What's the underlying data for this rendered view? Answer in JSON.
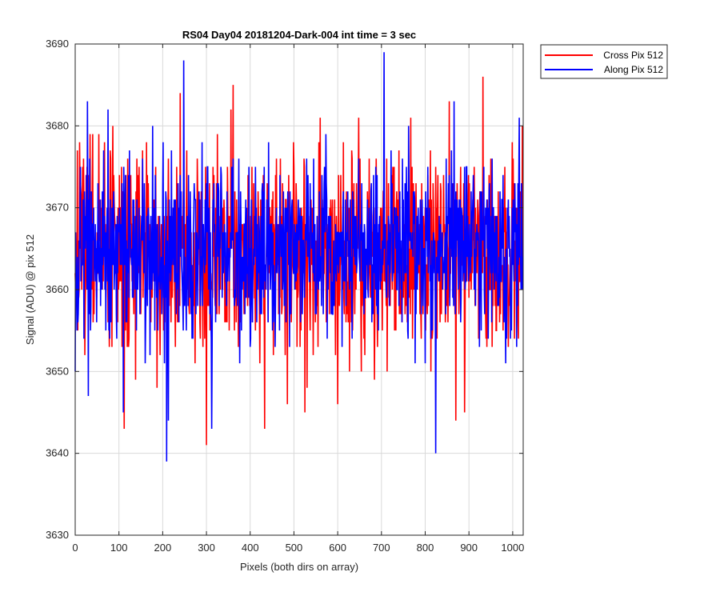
{
  "chart_data": {
    "type": "line",
    "title": "RS04 Day04 20181204-Dark-004 int time = 3 sec",
    "xlabel": "Pixels (both dirs on array)",
    "ylabel": "Signal (ADU) @ pix 512",
    "xlim": [
      0,
      1024
    ],
    "ylim": [
      3630,
      3690
    ],
    "xticks": [
      0,
      100,
      200,
      300,
      400,
      500,
      600,
      700,
      800,
      900,
      1000
    ],
    "yticks": [
      3630,
      3640,
      3650,
      3660,
      3670,
      3680,
      3690
    ],
    "grid": true,
    "legend_position": "outside-top-right",
    "series": [
      {
        "name": "Cross Pix 512",
        "color": "#ff0000",
        "mean": 3665,
        "spread": 6,
        "n_points": 1024,
        "seed": 7,
        "anchors": [
          [
            300,
            3641
          ],
          [
            433,
            3643
          ],
          [
            112,
            3643
          ],
          [
            932,
            3686
          ],
          [
            361,
            3685
          ],
          [
            240,
            3684
          ],
          [
            648,
            3681
          ],
          [
            1022,
            3680
          ],
          [
            890,
            3645
          ],
          [
            600,
            3646
          ],
          [
            525,
            3645
          ],
          [
            870,
            3644
          ]
        ]
      },
      {
        "name": "Along Pix 512",
        "color": "#0000ff",
        "mean": 3665,
        "spread": 5.5,
        "n_points": 1024,
        "seed": 13,
        "anchors": [
          [
            209,
            3639
          ],
          [
            824,
            3640
          ],
          [
            706,
            3689
          ],
          [
            248,
            3688
          ],
          [
            28,
            3683
          ],
          [
            75,
            3682
          ],
          [
            213,
            3644
          ],
          [
            312,
            3643
          ],
          [
            30,
            3647
          ],
          [
            110,
            3645
          ]
        ]
      }
    ]
  }
}
